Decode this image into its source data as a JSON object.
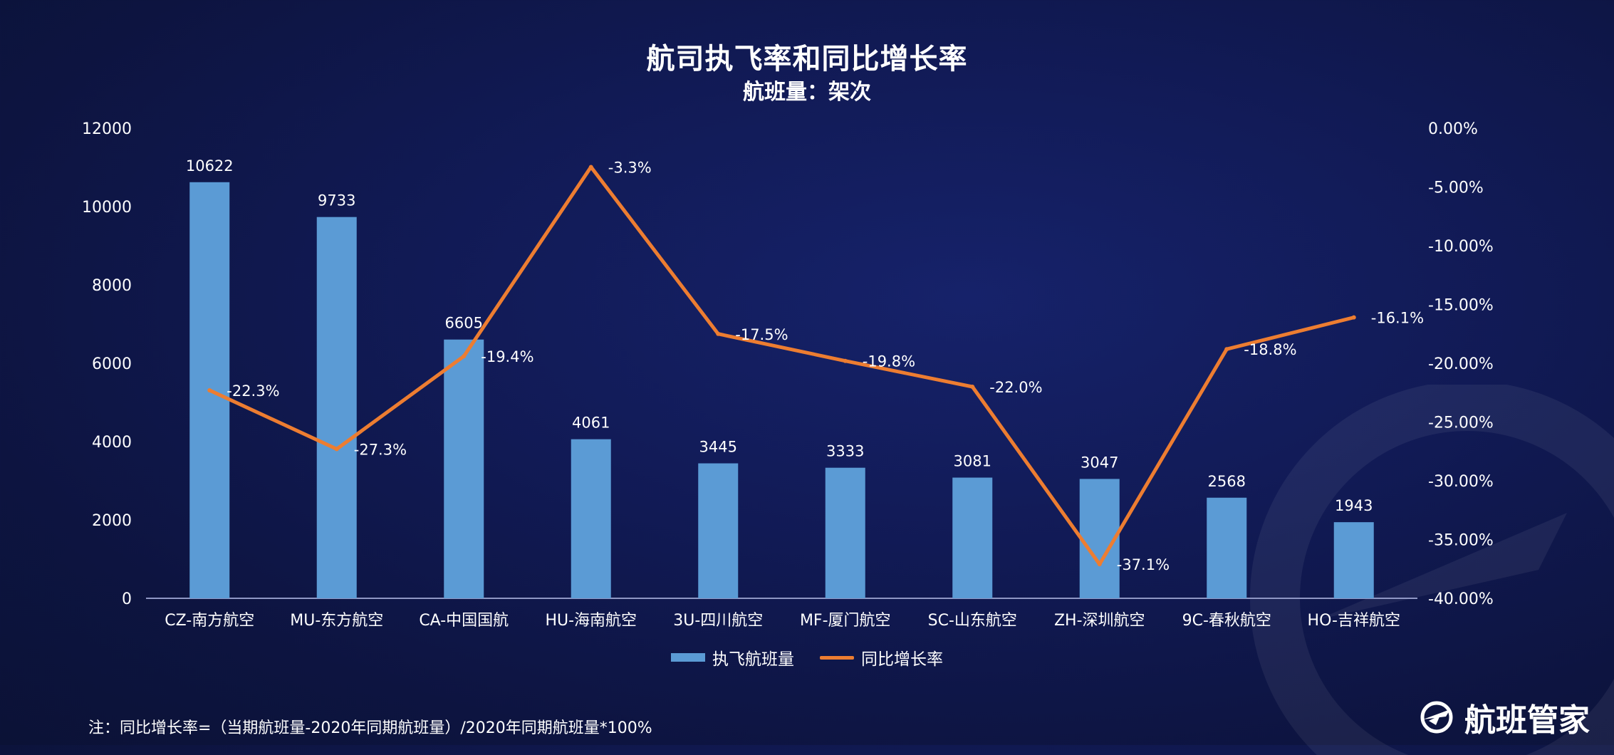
{
  "chart_data": {
    "type": "bar+line",
    "title": "航司执飞率和同比增长率",
    "subtitle": "航班量：架次",
    "categories": [
      "CZ-南方航空",
      "MU-东方航空",
      "CA-中国国航",
      "HU-海南航空",
      "3U-四川航空",
      "MF-厦门航空",
      "SC-山东航空",
      "ZH-深圳航空",
      "9C-春秋航空",
      "HO-吉祥航空"
    ],
    "series": [
      {
        "name": "执飞航班量",
        "type": "bar",
        "axis": "left",
        "color": "#5b9bd5",
        "values": [
          10622,
          9733,
          6605,
          4061,
          3445,
          3333,
          3081,
          3047,
          2568,
          1943
        ]
      },
      {
        "name": "同比增长率",
        "type": "line",
        "axis": "right",
        "color": "#ed7d31",
        "values": [
          -22.3,
          -27.3,
          -19.4,
          -3.3,
          -17.5,
          -19.8,
          -22.0,
          -37.1,
          -18.8,
          -16.1
        ],
        "labels": [
          "-22.3%",
          "-27.3%",
          "-19.4%",
          "-3.3%",
          "-17.5%",
          "-19.8%",
          "-22.0%",
          "-37.1%",
          "-18.8%",
          "-16.1%"
        ]
      }
    ],
    "y_left": {
      "min": 0,
      "max": 12000,
      "ticks": [
        "0",
        "2000",
        "4000",
        "6000",
        "8000",
        "10000",
        "12000"
      ]
    },
    "y_right": {
      "min": -40,
      "max": 0,
      "ticks": [
        "-40.00%",
        "-35.00%",
        "-30.00%",
        "-25.00%",
        "-20.00%",
        "-15.00%",
        "-10.00%",
        "-5.00%",
        "0.00%"
      ]
    },
    "legend_position": "bottom-center",
    "grid": false
  },
  "legend": {
    "bar_label": "执飞航班量",
    "line_label": "同比增长率"
  },
  "footnote": "注：同比增长率=（当期航班量-2020年同期航班量）/2020年同期航班量*100%",
  "brand": {
    "name": "航班管家",
    "icon": "plane-logo-icon"
  }
}
